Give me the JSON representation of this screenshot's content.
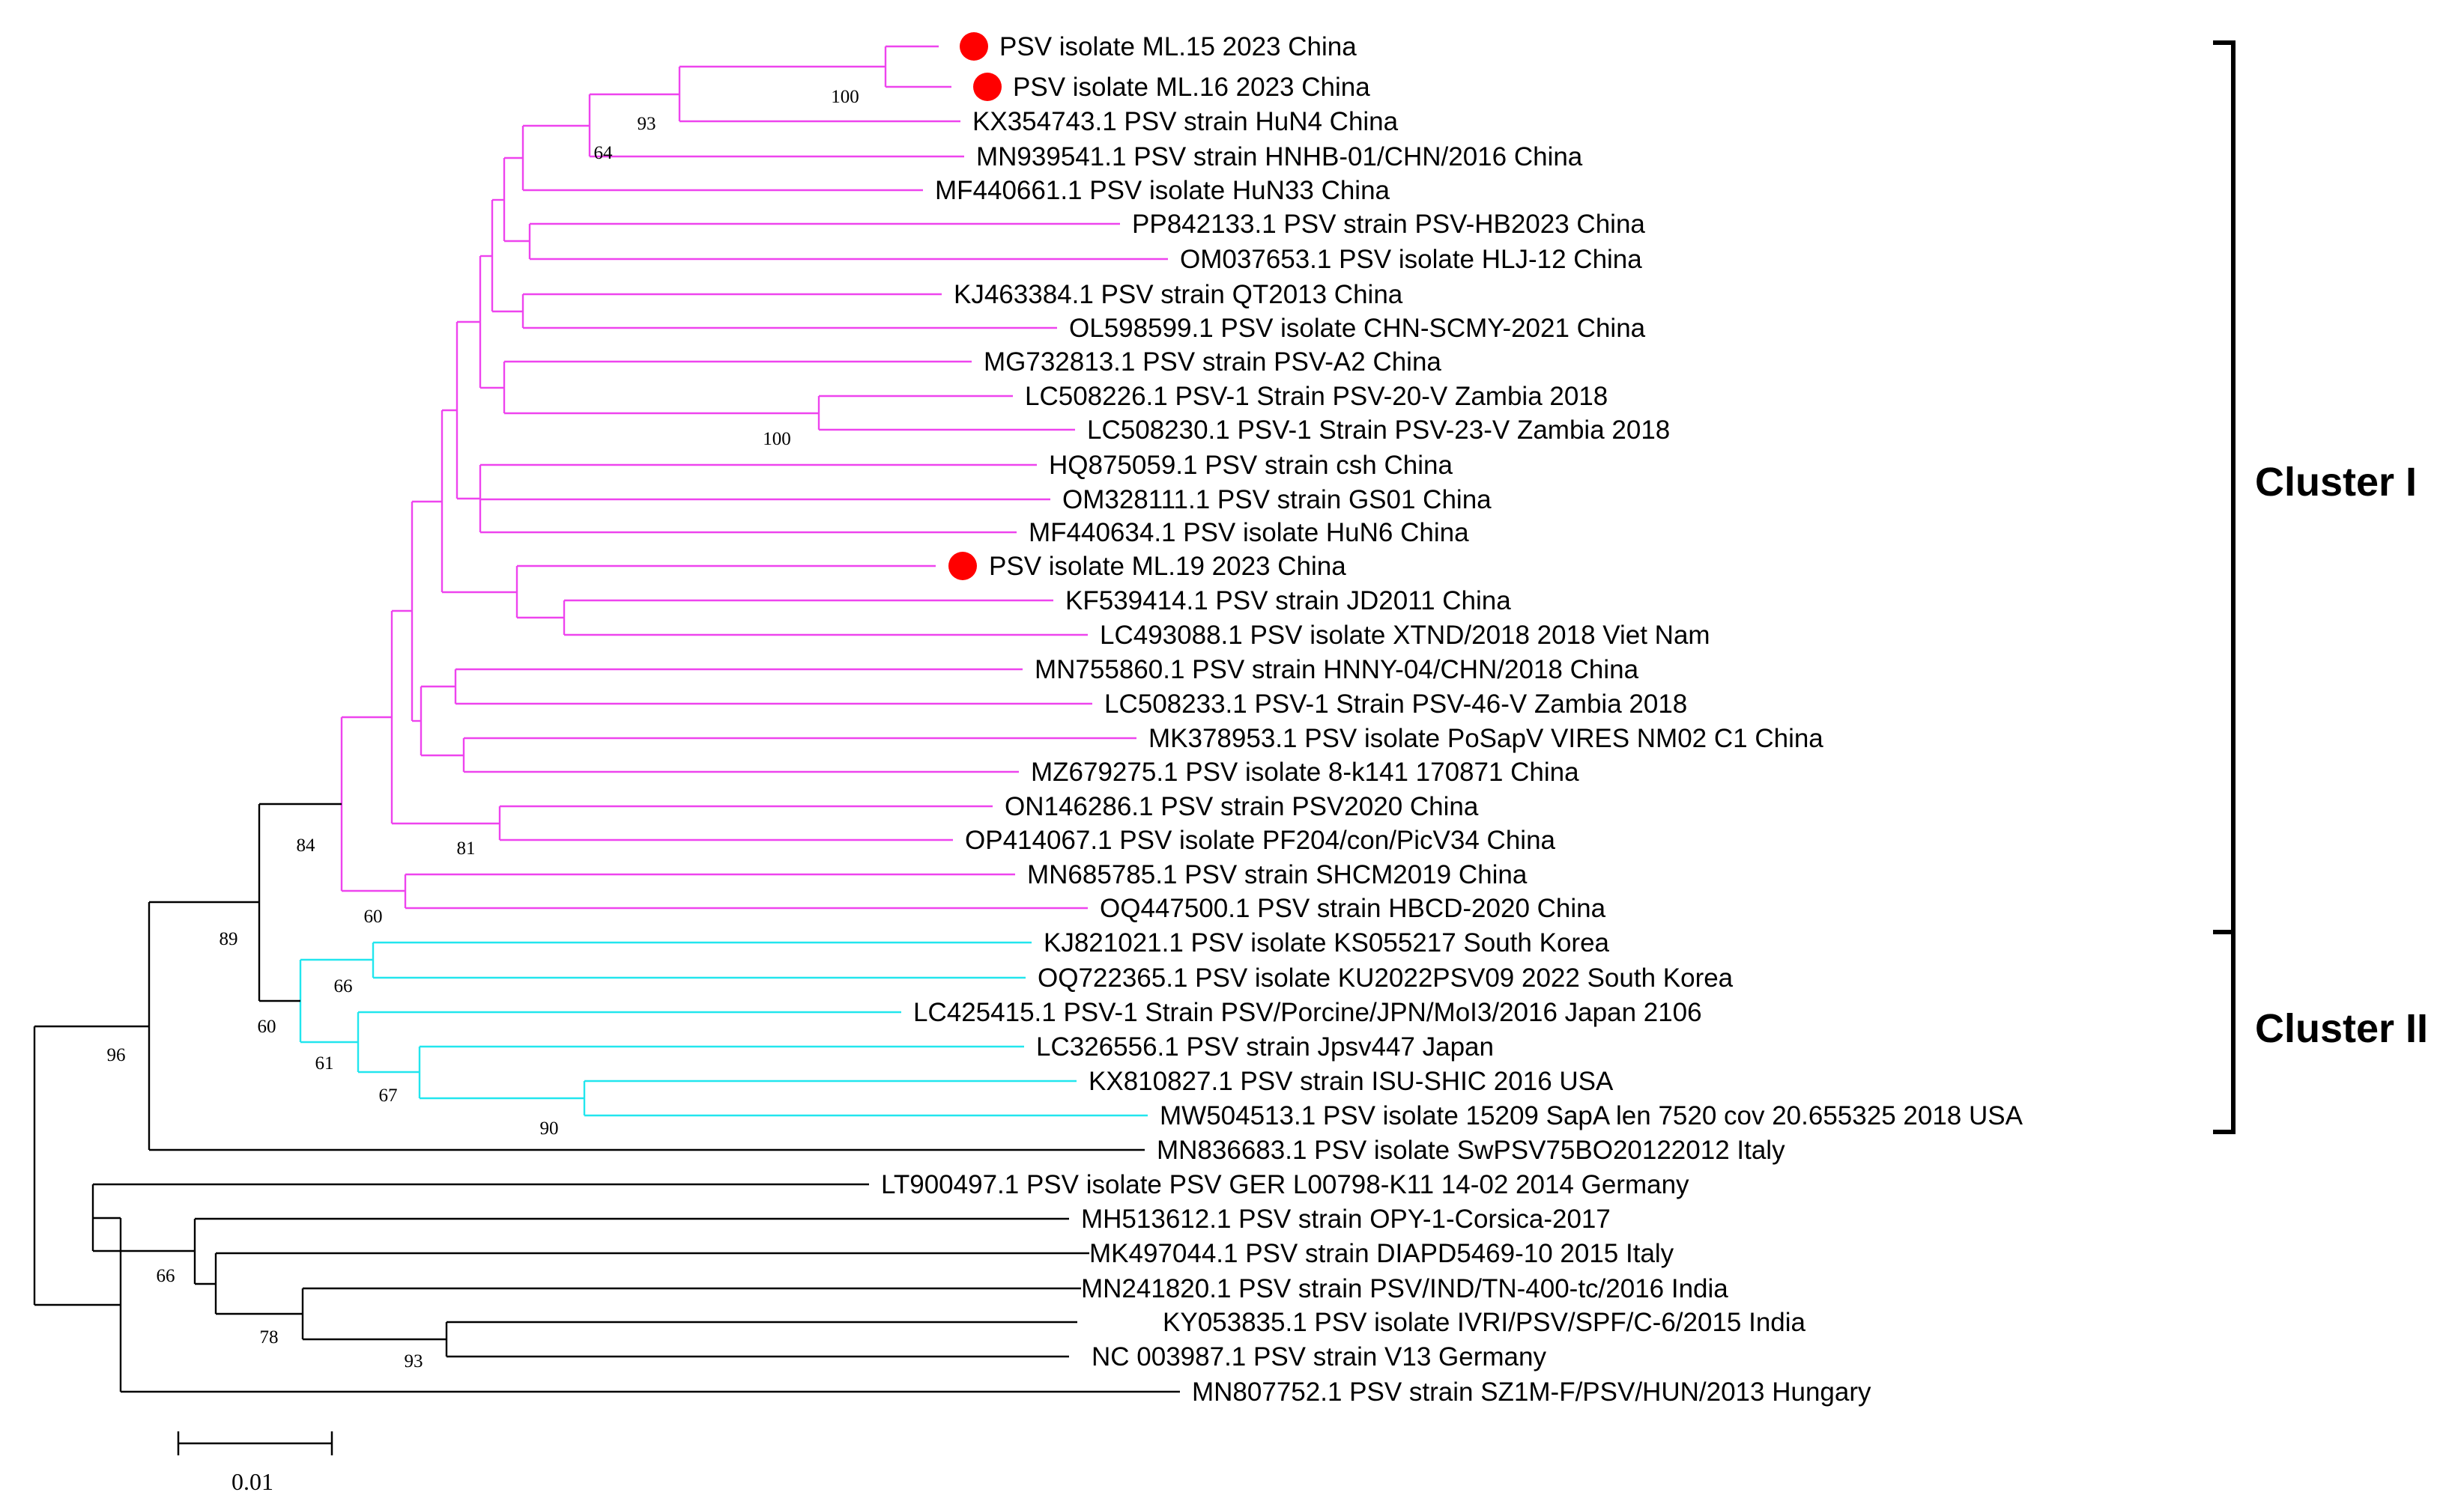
{
  "figure": {
    "type": "phylogenetic-tree",
    "scale_bar": "0.01",
    "colors": {
      "cluster1": "#ee44ee",
      "cluster2": "#22e6ee",
      "other": "#000000",
      "marker": "#ff0000"
    }
  },
  "taxa": [
    {
      "label": "PSV isolate ML.15 2023 China",
      "marked": true,
      "cluster": "I"
    },
    {
      "label": "PSV isolate ML.16 2023 China",
      "marked": true,
      "cluster": "I"
    },
    {
      "label": "KX354743.1 PSV strain HuN4 China",
      "cluster": "I"
    },
    {
      "label": "MN939541.1 PSV strain HNHB-01/CHN/2016 China",
      "cluster": "I"
    },
    {
      "label": "MF440661.1 PSV isolate HuN33 China",
      "cluster": "I"
    },
    {
      "label": "PP842133.1 PSV strain PSV-HB2023 China",
      "cluster": "I"
    },
    {
      "label": "OM037653.1 PSV isolate HLJ-12 China",
      "cluster": "I"
    },
    {
      "label": "KJ463384.1 PSV strain QT2013 China",
      "cluster": "I"
    },
    {
      "label": "OL598599.1 PSV isolate CHN-SCMY-2021 China",
      "cluster": "I"
    },
    {
      "label": "MG732813.1 PSV strain PSV-A2 China",
      "cluster": "I"
    },
    {
      "label": "LC508226.1 PSV-1 Strain PSV-20-V Zambia 2018",
      "cluster": "I"
    },
    {
      "label": "LC508230.1 PSV-1 Strain PSV-23-V Zambia 2018",
      "cluster": "I"
    },
    {
      "label": "HQ875059.1 PSV strain csh China",
      "cluster": "I"
    },
    {
      "label": "OM328111.1 PSV strain GS01 China",
      "cluster": "I"
    },
    {
      "label": "MF440634.1 PSV isolate HuN6 China",
      "cluster": "I"
    },
    {
      "label": "PSV isolate ML.19 2023 China",
      "marked": true,
      "cluster": "I"
    },
    {
      "label": "KF539414.1 PSV strain JD2011 China",
      "cluster": "I"
    },
    {
      "label": "LC493088.1 PSV isolate XTND/2018 2018 Viet Nam",
      "cluster": "I"
    },
    {
      "label": "MN755860.1 PSV strain HNNY-04/CHN/2018 China",
      "cluster": "I"
    },
    {
      "label": "LC508233.1 PSV-1 Strain PSV-46-V Zambia 2018",
      "cluster": "I"
    },
    {
      "label": "MK378953.1 PSV isolate PoSapV VIRES NM02 C1 China",
      "cluster": "I"
    },
    {
      "label": "MZ679275.1 PSV isolate 8-k141 170871 China",
      "cluster": "I"
    },
    {
      "label": "ON146286.1 PSV strain PSV2020 China",
      "cluster": "I"
    },
    {
      "label": "OP414067.1 PSV isolate PF204/con/PicV34 China",
      "cluster": "I"
    },
    {
      "label": "MN685785.1 PSV strain SHCM2019 China",
      "cluster": "I"
    },
    {
      "label": "OQ447500.1 PSV strain HBCD-2020 China",
      "cluster": "I"
    },
    {
      "label": "KJ821021.1 PSV isolate KS055217 South Korea",
      "cluster": "II"
    },
    {
      "label": "OQ722365.1 PSV isolate KU2022PSV09 2022 South Korea",
      "cluster": "II"
    },
    {
      "label": "LC425415.1 PSV-1 Strain PSV/Porcine/JPN/MoI3/2016 Japan 2106",
      "cluster": "II"
    },
    {
      "label": "LC326556.1 PSV strain Jpsv447 Japan",
      "cluster": "II"
    },
    {
      "label": "KX810827.1 PSV strain ISU-SHIC 2016 USA",
      "cluster": "II"
    },
    {
      "label": "MW504513.1 PSV isolate 15209 SapA len 7520 cov 20.655325 2018 USA",
      "cluster": "II"
    },
    {
      "label": "MN836683.1 PSV isolate SwPSV75BO20122012 Italy",
      "cluster": "none"
    },
    {
      "label": "LT900497.1 PSV isolate PSV GER L00798-K11 14-02 2014 Germany",
      "cluster": "none"
    },
    {
      "label": "MH513612.1 PSV strain OPY-1-Corsica-2017",
      "cluster": "none"
    },
    {
      "label": "MK497044.1 PSV strain DIAPD5469-10 2015 Italy",
      "cluster": "none"
    },
    {
      "label": "MN241820.1 PSV strain PSV/IND/TN-400-tc/2016 India",
      "cluster": "none"
    },
    {
      "label": "KY053835.1 PSV isolate IVRI/PSV/SPF/C-6/2015 India",
      "cluster": "none"
    },
    {
      "label": "NC 003987.1 PSV strain V13 Germany",
      "cluster": "none"
    },
    {
      "label": "MN807752.1 PSV strain SZ1M-F/PSV/HUN/2013 Hungary",
      "cluster": "none"
    }
  ],
  "bootstrap": [
    "100",
    "93",
    "64",
    "100",
    "84",
    "81",
    "60",
    "89",
    "66",
    "60",
    "61",
    "67",
    "90",
    "96",
    "66",
    "78",
    "93"
  ],
  "clusters": [
    {
      "label": "Cluster I"
    },
    {
      "label": "Cluster II"
    }
  ]
}
